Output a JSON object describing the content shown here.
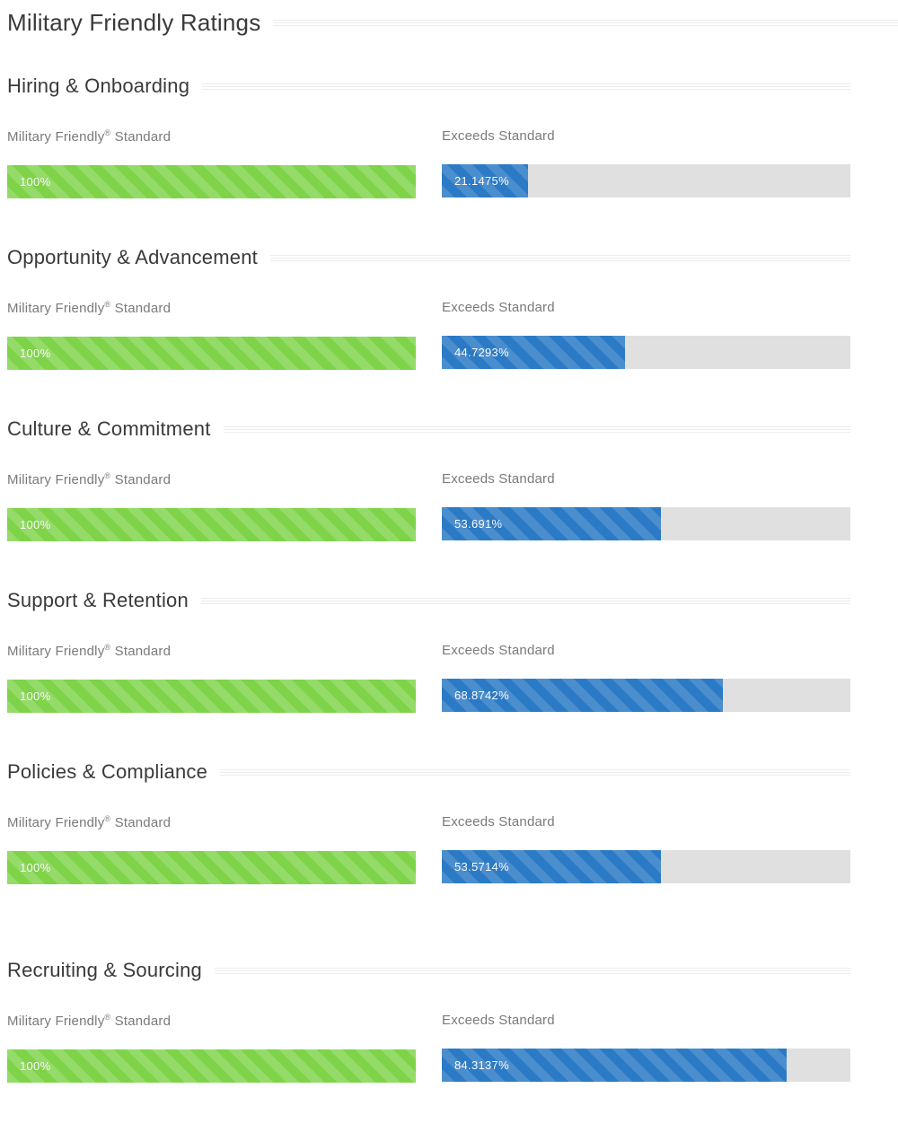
{
  "page": {
    "title": "Military Friendly Ratings"
  },
  "labels": {
    "standard_pre": "Military Friendly",
    "standard_sup": "®",
    "standard_post": " Standard",
    "exceeds": "Exceeds Standard"
  },
  "colors": {
    "standard_green": "#7ed348",
    "exceeds_blue": "#2b7ac6",
    "track_gray": "#e0e0e0",
    "heading_text": "#3a3a3a",
    "label_text": "#7a7a7a"
  },
  "sections": [
    {
      "name": "Hiring & Onboarding",
      "standard_text": "100%",
      "standard_value": 100,
      "exceeds_text": "21.1475%",
      "exceeds_value": 21.1475
    },
    {
      "name": "Opportunity & Advancement",
      "standard_text": "100%",
      "standard_value": 100,
      "exceeds_text": "44.7293%",
      "exceeds_value": 44.7293
    },
    {
      "name": "Culture & Commitment",
      "standard_text": "100%",
      "standard_value": 100,
      "exceeds_text": "53.691%",
      "exceeds_value": 53.691
    },
    {
      "name": "Support & Retention",
      "standard_text": "100%",
      "standard_value": 100,
      "exceeds_text": "68.8742%",
      "exceeds_value": 68.8742
    },
    {
      "name": "Policies & Compliance",
      "standard_text": "100%",
      "standard_value": 100,
      "exceeds_text": "53.5714%",
      "exceeds_value": 53.5714
    },
    {
      "name": "Recruiting & Sourcing",
      "standard_text": "100%",
      "standard_value": 100,
      "exceeds_text": "84.3137%",
      "exceeds_value": 84.3137
    }
  ],
  "chart_data": {
    "type": "bar",
    "title": "Military Friendly Ratings",
    "categories": [
      "Hiring & Onboarding",
      "Opportunity & Advancement",
      "Culture & Commitment",
      "Support & Retention",
      "Policies & Compliance",
      "Recruiting & Sourcing"
    ],
    "series": [
      {
        "name": "Military Friendly® Standard",
        "values": [
          100,
          100,
          100,
          100,
          100,
          100
        ]
      },
      {
        "name": "Exceeds Standard",
        "values": [
          21.1475,
          44.7293,
          53.691,
          68.8742,
          53.5714,
          84.3137
        ]
      }
    ],
    "value_labels": [
      [
        "100%",
        "21.1475%"
      ],
      [
        "100%",
        "44.7293%"
      ],
      [
        "100%",
        "53.691%"
      ],
      [
        "100%",
        "68.8742%"
      ],
      [
        "100%",
        "53.5714%"
      ],
      [
        "100%",
        "84.3137%"
      ]
    ],
    "xlim": [
      0,
      100
    ],
    "orientation": "horizontal",
    "grid": false,
    "legend_position": "none"
  }
}
